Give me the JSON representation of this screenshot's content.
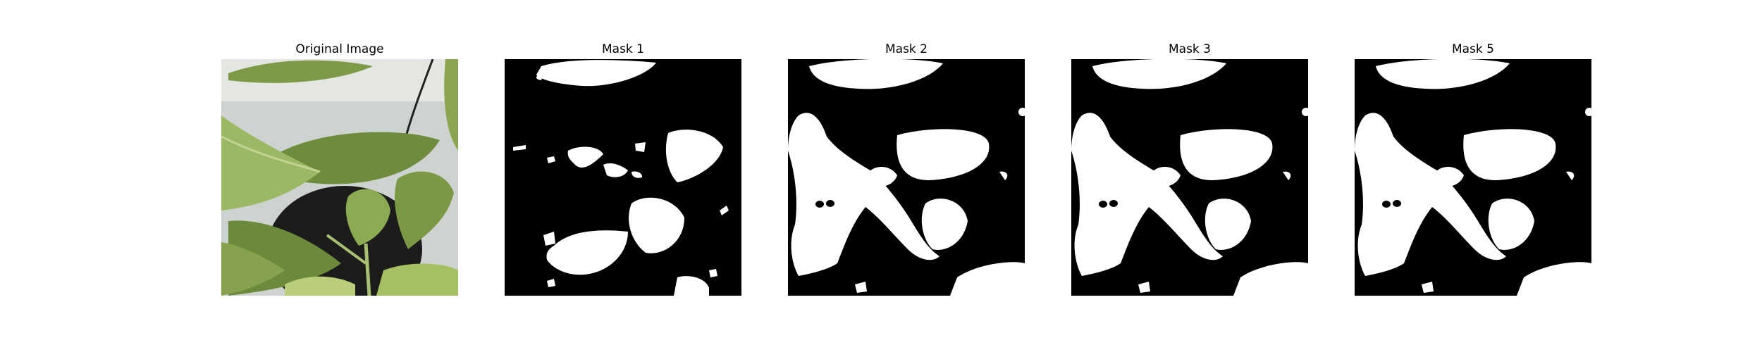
{
  "figure": {
    "panels": [
      {
        "title": "Original Image",
        "kind": "photo"
      },
      {
        "title": "Mask 1",
        "kind": "mask"
      },
      {
        "title": "Mask 2",
        "kind": "mask"
      },
      {
        "title": "Mask 3",
        "kind": "mask"
      },
      {
        "title": "Mask 5",
        "kind": "mask"
      }
    ]
  },
  "colors": {
    "mask_background": "#000000",
    "mask_foreground": "#ffffff",
    "photo_wall": "#cfd3cf",
    "leaf_light": "#9bb865",
    "leaf_mid": "#7c9a48",
    "leaf_dark": "#5d7a35",
    "pot": "#1c1c1a"
  }
}
